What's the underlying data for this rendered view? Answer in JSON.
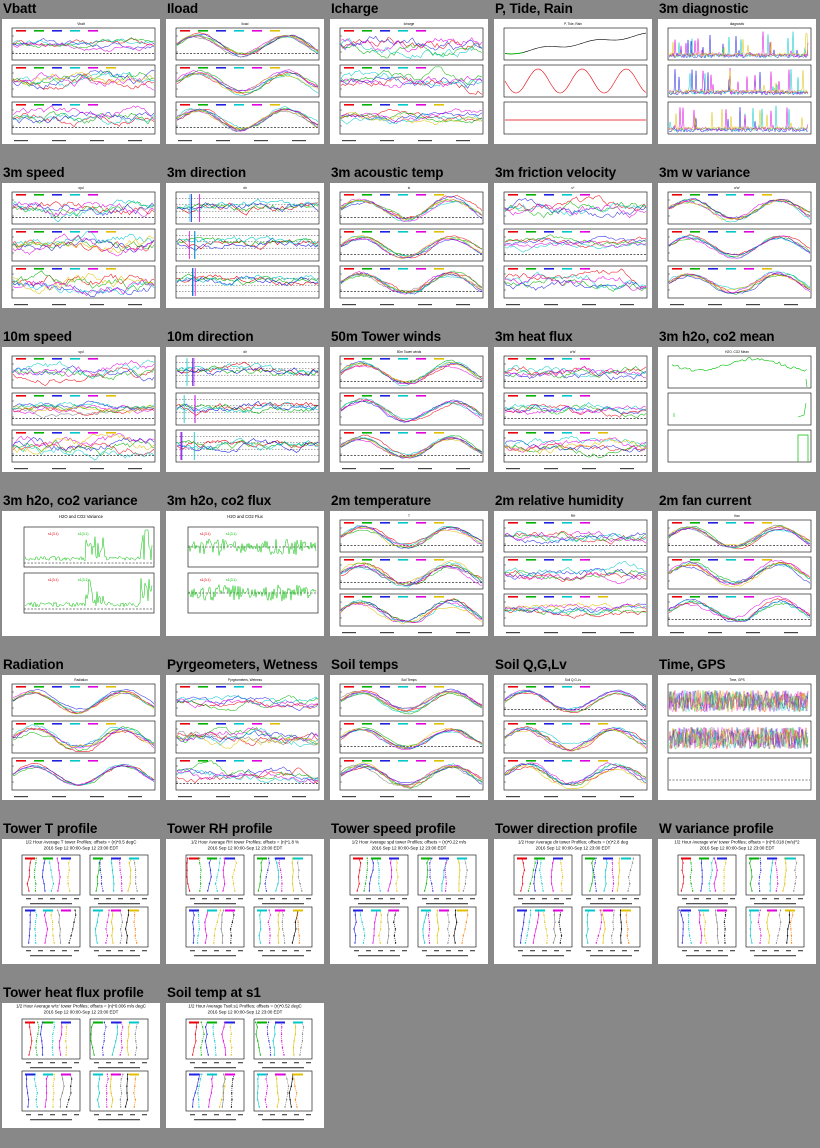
{
  "page": {
    "background": "#888888"
  },
  "plots": [
    {
      "title": "Vbatt",
      "kind": "ts3",
      "heading": "Vbatt"
    },
    {
      "title": "Iload",
      "kind": "ts3",
      "heading": "Iload"
    },
    {
      "title": "Icharge",
      "kind": "ts3",
      "heading": "Icharge"
    },
    {
      "title": "P, Tide, Rain",
      "kind": "ptide",
      "heading": "P, Tide, Rain"
    },
    {
      "title": "3m diagnostic",
      "kind": "diag",
      "heading": "diagnostic"
    },
    {
      "title": "3m speed",
      "kind": "ts3",
      "heading": "spd"
    },
    {
      "title": "3m direction",
      "kind": "dir",
      "heading": "dir"
    },
    {
      "title": "3m acoustic temp",
      "kind": "ts3",
      "heading": "tc"
    },
    {
      "title": "3m friction velocity",
      "kind": "ts3",
      "heading": "u*"
    },
    {
      "title": "3m w variance",
      "kind": "ts3",
      "heading": "w'w'"
    },
    {
      "title": "10m speed",
      "kind": "ts3",
      "heading": "spd"
    },
    {
      "title": "10m direction",
      "kind": "dir",
      "heading": "dir"
    },
    {
      "title": "50m Tower winds",
      "kind": "tower50",
      "heading": "50m Tower winds"
    },
    {
      "title": "3m heat flux",
      "kind": "ts3",
      "heading": "w'tc'"
    },
    {
      "title": "3m h2o, co2 mean",
      "kind": "h2omean",
      "heading": "H2O, CO2 Mean"
    },
    {
      "title": "3m h2o, co2 variance",
      "kind": "h2ovar",
      "heading": "H2O and CO2 Variance",
      "legend": "s1(3.1)"
    },
    {
      "title": "3m h2o, co2 flux",
      "kind": "h2oflux",
      "heading": "H2O and CO2 Flux",
      "legend": "s1(3.1)"
    },
    {
      "title": "2m temperature",
      "kind": "ts3",
      "heading": "T"
    },
    {
      "title": "2m relative humidity",
      "kind": "ts3",
      "heading": "RH"
    },
    {
      "title": "2m fan current",
      "kind": "ts3",
      "heading": "Ifan"
    },
    {
      "title": "Radiation",
      "kind": "ts3",
      "heading": "Radiation"
    },
    {
      "title": "Pyrgeometers, Wetness",
      "kind": "ts3",
      "heading": "Pyrgeometers, Wetness"
    },
    {
      "title": "Soil temps",
      "kind": "ts3",
      "heading": "Soil Temps"
    },
    {
      "title": "Soil Q,G,Lv",
      "kind": "ts3",
      "heading": "Soil Q,G,Lv"
    },
    {
      "title": "Time, GPS",
      "kind": "noise",
      "heading": "Time, GPS"
    },
    {
      "title": "Tower T profile",
      "kind": "profile",
      "heading": "1/2 Hour Average T tower Profiles; offsets = (n)*0.5 degC",
      "sub": "2016 Sep 12 00:00-Sep 12 23:00 EDT"
    },
    {
      "title": "Tower RH profile",
      "kind": "profile",
      "heading": "1/2 Hour Average RH tower Profiles; offsets = (n)*1.8 %",
      "sub": "2016 Sep 12 00:00-Sep 12 23:00 EDT"
    },
    {
      "title": "Tower speed profile",
      "kind": "profile",
      "heading": "1/2 Hour Average spd tower Profiles; offsets = (n)*0.22 m/s",
      "sub": "2016 Sep 12 00:00-Sep 12 23:00 EDT"
    },
    {
      "title": "Tower direction profile",
      "kind": "profile",
      "heading": "1/2 Hour Average dir tower Profiles; offsets = (n)*2.8 deg",
      "sub": "2016 Sep 12 00:00-Sep 12 23:00 EDT"
    },
    {
      "title": "W variance profile",
      "kind": "profile",
      "heading": "1/2 Hour Average w'w' tower Profiles; offsets = (n)*0.018 (m/s)^2",
      "sub": "2016 Sep 12 00:00-Sep 12 23:00 EDT"
    },
    {
      "title": "Tower heat flux profile",
      "kind": "profile",
      "heading": "1/2 Hour Average w'tc' tower Profiles; offsets = (n)*0.006 m/s degC",
      "sub": "2016 Sep 12 00:00-Sep 12 23:00 EDT"
    },
    {
      "title": "Soil temp at s1",
      "kind": "profile",
      "heading": "1/2 Hour Average Tsoil.s1 Profiles; offsets = (n)*0.52 degC",
      "sub": "2016 Sep 12 00:00-Sep 12 23:00 EDT"
    }
  ],
  "colors": {
    "series": [
      "#e8000b",
      "#00b000",
      "#2020e0",
      "#00c8c8",
      "#e000e0",
      "#e0c000",
      "#808080",
      "#000000",
      "#ff8000"
    ],
    "green": "#00c000",
    "frame": "#000000",
    "reference": "#000000"
  }
}
